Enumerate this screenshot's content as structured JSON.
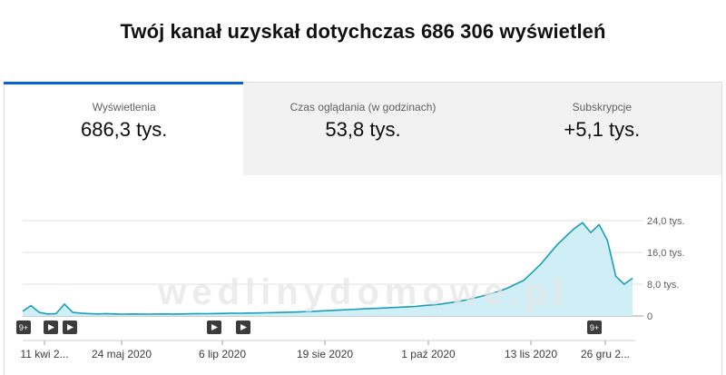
{
  "headline": "Twój kanał uzyskał dotychczas 686 306 wyświetleń",
  "tabs": [
    {
      "label": "Wyświetlenia",
      "value": "686,3 tys."
    },
    {
      "label": "Czas oglądania (w godzinach)",
      "value": "53,8 tys."
    },
    {
      "label": "Subskrypcje",
      "value": "+5,1 tys."
    }
  ],
  "watermark": "wedlinydomowe.pl",
  "markers": [
    {
      "label": "9+",
      "icon": "badge-count"
    },
    {
      "label": "",
      "icon": "play-icon"
    },
    {
      "label": "",
      "icon": "play-icon"
    },
    {
      "label": "",
      "icon": "play-icon"
    },
    {
      "label": "",
      "icon": "play-icon"
    },
    {
      "label": "9+",
      "icon": "badge-count"
    }
  ],
  "colors": {
    "line": "#1a9fb7",
    "fill": "#cfeef5",
    "accent": "#065fd4"
  },
  "chart_data": {
    "type": "area",
    "x_tick_labels": [
      "11 kwi 2...",
      "24 maj 2020",
      "6 lip 2020",
      "19 sie 2020",
      "1 paź 2020",
      "13 lis 2020",
      "26 gru 2..."
    ],
    "y_tick_labels": [
      "24,0 tys.",
      "16,0 tys.",
      "8,0 tys.",
      "0"
    ],
    "ylim": [
      0,
      24000
    ],
    "grid": true,
    "series": [
      {
        "values": [
          1200,
          2600,
          900,
          500,
          600,
          3000,
          900,
          700,
          600,
          500,
          600,
          500,
          450,
          500,
          480,
          450,
          500,
          520,
          480,
          500,
          550,
          600,
          580,
          620,
          650,
          700,
          680,
          720,
          760,
          800,
          850,
          900,
          950,
          1000,
          1100,
          1200,
          1300,
          1400,
          1500,
          1600,
          1700,
          1800,
          1900,
          2000,
          2100,
          2200,
          2300,
          2400,
          2600,
          2800,
          3000,
          3300,
          3600,
          4000,
          4500,
          5000,
          5600,
          6200,
          7000,
          8000,
          9000,
          11000,
          13000,
          15500,
          18000,
          20000,
          22000,
          23500,
          21000,
          23000,
          19000,
          10000,
          8000,
          9500
        ]
      }
    ]
  }
}
